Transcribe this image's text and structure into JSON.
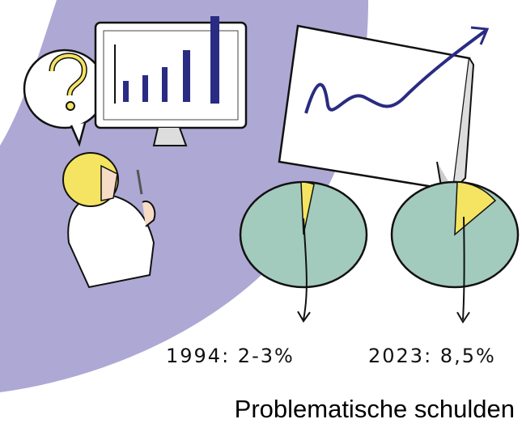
{
  "illustration": {
    "pie_labels": [
      "1994: 2-3%",
      "2023: 8,5%"
    ]
  },
  "caption": "Problematische schulden"
}
